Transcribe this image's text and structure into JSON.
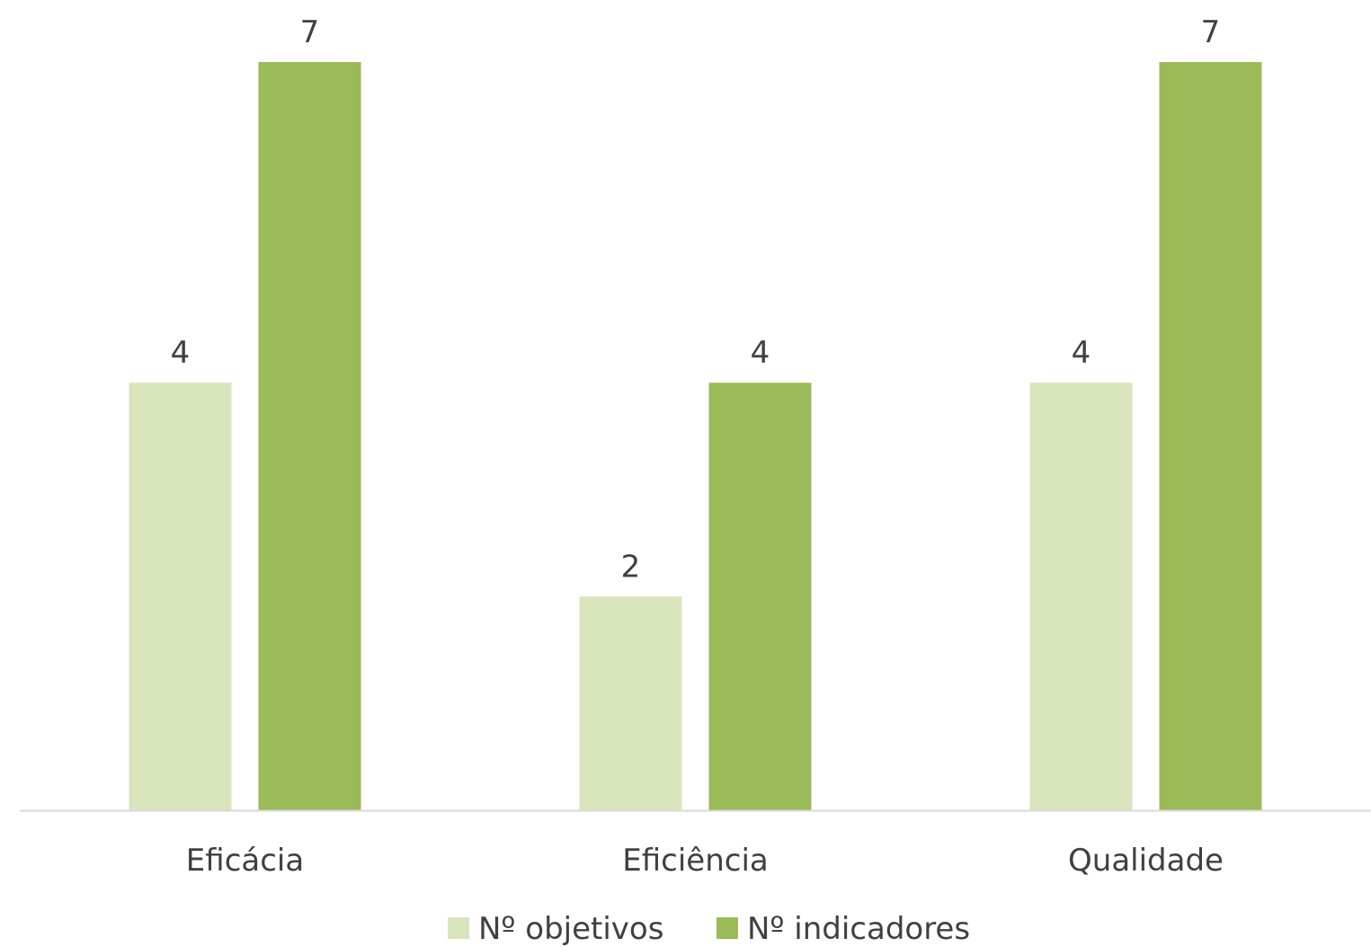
{
  "chart_data": {
    "type": "bar",
    "title": "",
    "xlabel": "",
    "ylabel": "",
    "categories": [
      "Eficácia",
      "Eficiência",
      "Qualidade"
    ],
    "series": [
      {
        "name": "Nº objetivos",
        "values": [
          4,
          2,
          4
        ],
        "color": "#d8e4bc"
      },
      {
        "name": "Nº indicadores",
        "values": [
          7,
          4,
          7
        ],
        "color": "#9bbb59"
      }
    ],
    "ylim": [
      0,
      7
    ],
    "grid": false,
    "data_labels": true,
    "legend_position": "bottom",
    "axis_color": "#d9d9d9"
  }
}
